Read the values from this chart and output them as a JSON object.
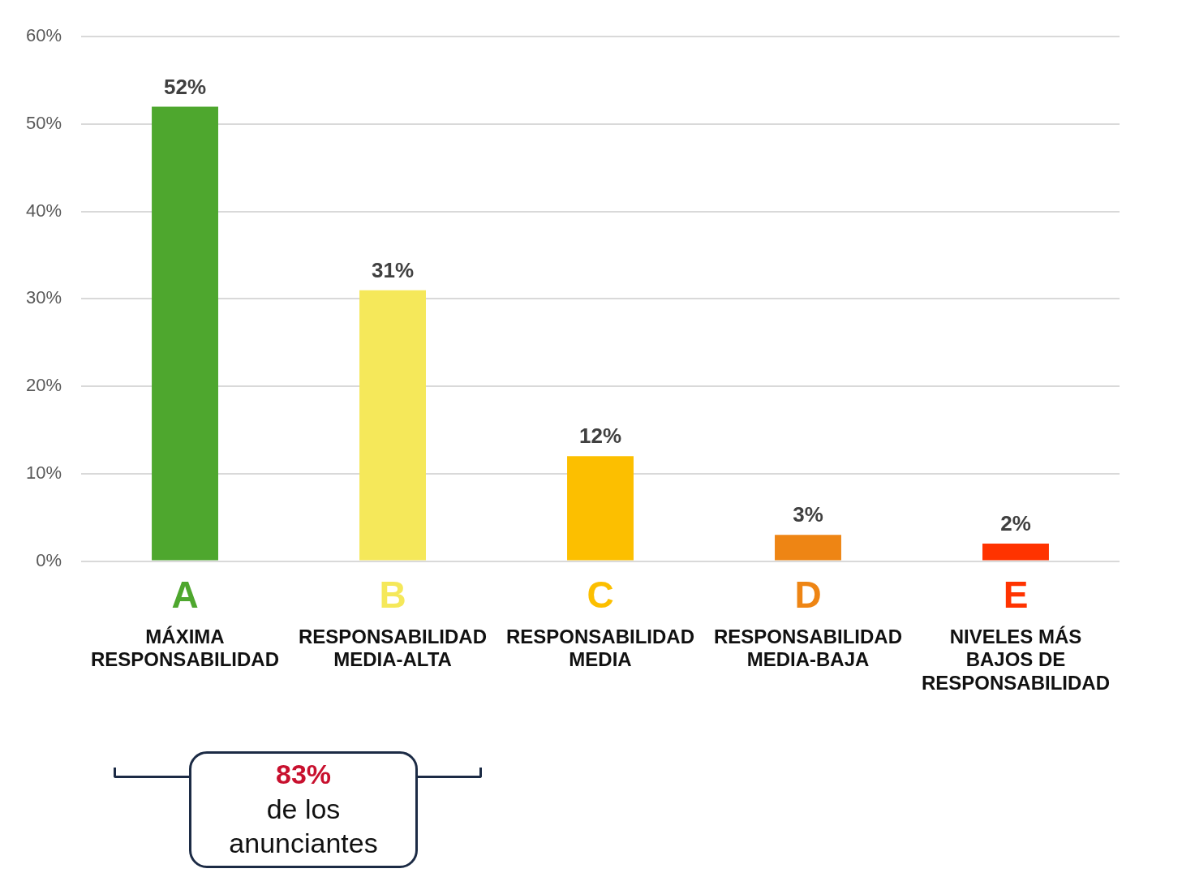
{
  "chart_data": {
    "type": "bar",
    "categories": [
      "MÁXIMA RESPONSABILIDAD",
      "RESPONSABILIDAD MEDIA-ALTA",
      "RESPONSABILIDAD MEDIA",
      "RESPONSABILIDAD MEDIA-BAJA",
      "NIVELES MÁS BAJOS DE RESPONSABILIDAD"
    ],
    "values": [
      52,
      31,
      12,
      3,
      2
    ],
    "colors": [
      "#4ea72e",
      "#f5e85a",
      "#fcbf00",
      "#ee8514",
      "#ff3300"
    ],
    "value_labels": [
      "52%",
      "31%",
      "12%",
      "3%",
      "2%"
    ],
    "ylim": [
      0,
      60
    ],
    "yticks": [
      {
        "value": 0,
        "label": "0%"
      },
      {
        "value": 10,
        "label": "10%"
      },
      {
        "value": 20,
        "label": "20%"
      },
      {
        "value": 30,
        "label": "30%"
      },
      {
        "value": 40,
        "label": "40%"
      },
      {
        "value": 50,
        "label": "50%"
      },
      {
        "value": 60,
        "label": "60%"
      }
    ],
    "grid": "y",
    "annotations": [
      "A",
      "B",
      "C",
      "D",
      "E",
      "83% de los anunciantes"
    ]
  }
}
